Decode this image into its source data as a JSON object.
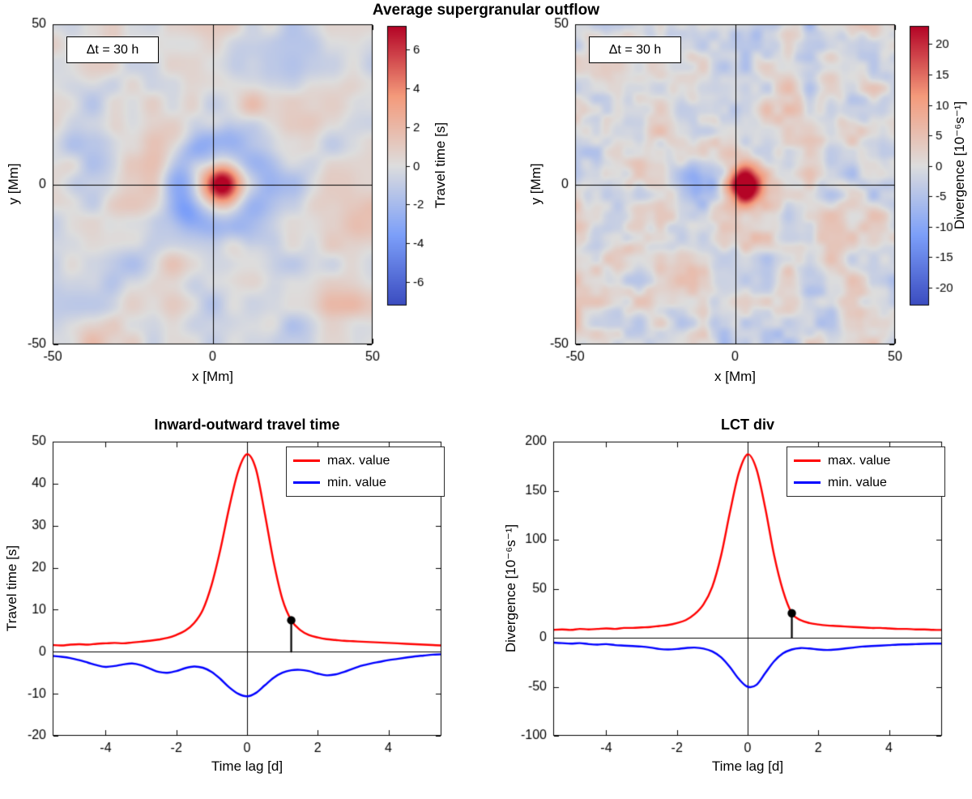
{
  "figure": {
    "suptitle": "Average supergranular outflow",
    "background": "#ffffff"
  },
  "palette": {
    "max_line": "#ff0000",
    "min_line": "#0000ff",
    "axis": "#000000",
    "marker": "#000000",
    "colormap_blue": "#3b4cc0",
    "colormap_mid": "#dddddd",
    "colormap_red": "#b40426"
  },
  "chart_data": [
    {
      "id": "travel-time-map",
      "type": "heatmap",
      "annotation": "Δt = 30 h",
      "xlabel": "x [Mm]",
      "ylabel": "y [Mm]",
      "xlim": [
        -50,
        50
      ],
      "ylim": [
        -50,
        50
      ],
      "xticks": [
        -50,
        0,
        50
      ],
      "yticks": [
        -50,
        0,
        50
      ],
      "crosshair_at": [
        0,
        0
      ],
      "colormap": "coolwarm",
      "clim": [
        -7.2,
        7.2
      ],
      "colorbar": {
        "label": "Travel time [s]",
        "ticks": [
          -6,
          -4,
          -2,
          0,
          2,
          4,
          6
        ]
      },
      "features": {
        "peak": {
          "center": [
            3,
            0
          ],
          "amplitude": 9,
          "sigma": 6
        },
        "ring": {
          "radius": 13.5,
          "width": 5,
          "amplitude": -3.4,
          "left_bias": 0.75
        },
        "noise": {
          "amplitude": 1.5,
          "cells": 8,
          "seed": 11
        }
      }
    },
    {
      "id": "divergence-map",
      "type": "heatmap",
      "annotation": "Δt = 30 h",
      "xlabel": "x [Mm]",
      "ylabel": "y [Mm]",
      "xlim": [
        -50,
        50
      ],
      "ylim": [
        -50,
        50
      ],
      "xticks": [
        -50,
        0,
        50
      ],
      "yticks": [
        -50,
        0,
        50
      ],
      "crosshair_at": [
        0,
        0
      ],
      "colormap": "coolwarm",
      "clim": [
        -23,
        23
      ],
      "colorbar": {
        "label": "Divergence [10⁻⁶s⁻¹]",
        "ticks": [
          -20,
          -15,
          -10,
          -5,
          0,
          5,
          10,
          15,
          20
        ]
      },
      "features": {
        "peak": {
          "center": [
            3,
            0
          ],
          "amplitude": 30,
          "sigma": 6
        },
        "patch": {
          "center": [
            -11,
            0
          ],
          "size": [
            5.5,
            7
          ],
          "amplitude": -11
        },
        "noise": {
          "amplitude": 4.5,
          "cells": 15,
          "seed": 29
        }
      }
    },
    {
      "id": "travel-time-curve",
      "type": "line",
      "title": "Inward-outward travel time",
      "xlabel": "Time lag [d]",
      "ylabel": "Travel time [s]",
      "xlim": [
        -5.5,
        5.5
      ],
      "ylim": [
        -20,
        50
      ],
      "xticks": [
        -4,
        -2,
        0,
        2,
        4
      ],
      "yticks": [
        -20,
        -10,
        0,
        10,
        20,
        30,
        40,
        50
      ],
      "x": [
        -5.5,
        -5.25,
        -5,
        -4.75,
        -4.5,
        -4.25,
        -4,
        -3.75,
        -3.5,
        -3.25,
        -3,
        -2.75,
        -2.5,
        -2.25,
        -2,
        -1.75,
        -1.5,
        -1.25,
        -1,
        -0.75,
        -0.5,
        -0.25,
        0,
        0.25,
        0.5,
        0.75,
        1,
        1.25,
        1.5,
        1.75,
        2,
        2.25,
        2.5,
        2.75,
        3,
        3.25,
        3.5,
        3.75,
        4,
        4.25,
        4.5,
        4.75,
        5,
        5.25,
        5.5
      ],
      "series": [
        {
          "name": "max. value",
          "color": "#ff0000",
          "values": [
            1.6,
            1.5,
            1.7,
            1.8,
            1.7,
            1.9,
            2.0,
            2.1,
            2.0,
            2.2,
            2.4,
            2.6,
            2.9,
            3.3,
            4.0,
            5.0,
            6.8,
            10.0,
            16.0,
            24.5,
            34.5,
            43.0,
            47.0,
            43.5,
            33.0,
            21.5,
            12.5,
            7.5,
            5.2,
            4.0,
            3.4,
            3.0,
            2.8,
            2.6,
            2.5,
            2.4,
            2.3,
            2.2,
            2.1,
            2.0,
            1.9,
            1.8,
            1.7,
            1.6,
            1.5
          ]
        },
        {
          "name": "min. value",
          "color": "#0000ff",
          "values": [
            -1.0,
            -1.2,
            -1.5,
            -2.0,
            -2.6,
            -3.2,
            -3.6,
            -3.4,
            -3.0,
            -2.8,
            -3.2,
            -4.0,
            -4.8,
            -5.0,
            -4.6,
            -3.9,
            -3.5,
            -3.8,
            -4.8,
            -6.5,
            -8.5,
            -10.0,
            -10.6,
            -9.8,
            -8.0,
            -6.2,
            -5.0,
            -4.4,
            -4.3,
            -4.6,
            -5.2,
            -5.6,
            -5.4,
            -4.8,
            -4.0,
            -3.3,
            -2.8,
            -2.4,
            -2.0,
            -1.7,
            -1.4,
            -1.1,
            -0.9,
            -0.7,
            -0.6
          ]
        }
      ],
      "marker": {
        "x": 1.25,
        "y": 7.5
      }
    },
    {
      "id": "lct-div-curve",
      "type": "line",
      "title": "LCT div",
      "xlabel": "Time lag [d]",
      "ylabel": "Divergence [10⁻⁶s⁻¹]",
      "xlim": [
        -5.5,
        5.5
      ],
      "ylim": [
        -100,
        200
      ],
      "xticks": [
        -4,
        -2,
        0,
        2,
        4
      ],
      "yticks": [
        -100,
        -50,
        0,
        50,
        100,
        150,
        200
      ],
      "x": [
        -5.5,
        -5.25,
        -5,
        -4.75,
        -4.5,
        -4.25,
        -4,
        -3.75,
        -3.5,
        -3.25,
        -3,
        -2.75,
        -2.5,
        -2.25,
        -2,
        -1.75,
        -1.5,
        -1.25,
        -1,
        -0.75,
        -0.5,
        -0.25,
        0,
        0.25,
        0.5,
        0.75,
        1,
        1.25,
        1.5,
        1.75,
        2,
        2.25,
        2.5,
        2.75,
        3,
        3.25,
        3.5,
        3.75,
        4,
        4.25,
        4.5,
        4.75,
        5,
        5.25,
        5.5
      ],
      "series": [
        {
          "name": "max. value",
          "color": "#ff0000",
          "values": [
            8,
            8.5,
            8,
            9,
            8.5,
            9,
            9.5,
            9,
            10,
            10,
            10.5,
            11,
            12,
            13,
            15,
            18,
            24,
            34,
            52,
            84,
            128,
            168,
            187,
            172,
            132,
            84,
            48,
            25,
            18,
            15,
            13.5,
            12.5,
            12,
            11.5,
            11,
            10.5,
            10,
            10,
            9.5,
            9,
            9,
            8.5,
            8.5,
            8,
            8
          ]
        },
        {
          "name": "min. value",
          "color": "#0000ff",
          "values": [
            -5,
            -5.5,
            -6,
            -5.5,
            -6.5,
            -7,
            -6.5,
            -7.5,
            -8,
            -8.5,
            -9,
            -10,
            -11.5,
            -12,
            -11.5,
            -10.5,
            -10,
            -11,
            -14,
            -20,
            -30,
            -42,
            -50,
            -48,
            -36,
            -24,
            -16,
            -12,
            -10.5,
            -11,
            -12,
            -12.5,
            -12,
            -11,
            -10,
            -9,
            -8.5,
            -8,
            -7.5,
            -7,
            -6.8,
            -6.5,
            -6.2,
            -6,
            -6
          ]
        }
      ],
      "marker": {
        "x": 1.25,
        "y": 25
      }
    }
  ]
}
